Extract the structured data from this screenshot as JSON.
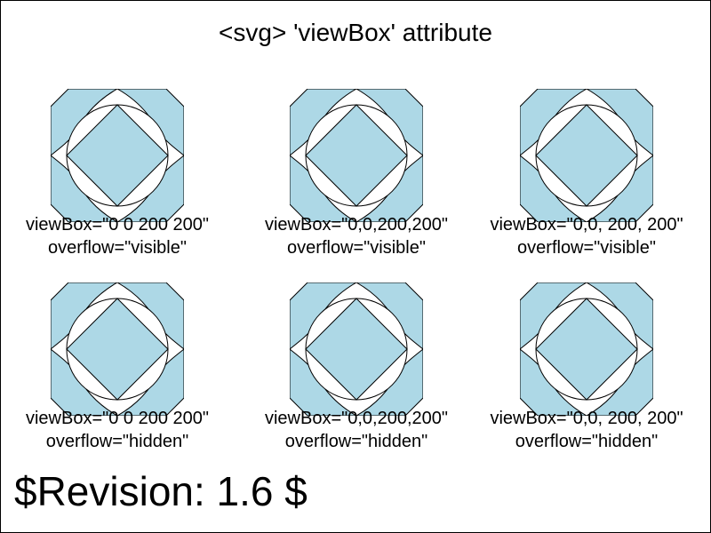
{
  "title": "<svg> 'viewBox' attribute",
  "revision": "$Revision: 1.6 $",
  "colors": {
    "fill": "#add8e6",
    "stroke": "#000000",
    "background": "#ffffff"
  },
  "cells": [
    {
      "viewbox_label": "viewBox=\"0 0 200 200\"",
      "overflow_label": "overflow=\"visible\""
    },
    {
      "viewbox_label": "viewBox=\"0,0,200,200\"",
      "overflow_label": "overflow=\"visible\""
    },
    {
      "viewbox_label": "viewBox=\"0,0, 200, 200\"",
      "overflow_label": "overflow=\"visible\""
    },
    {
      "viewbox_label": "viewBox=\"0 0 200 200\"",
      "overflow_label": "overflow=\"hidden\""
    },
    {
      "viewbox_label": "viewBox=\"0,0,200,200\"",
      "overflow_label": "overflow=\"hidden\""
    },
    {
      "viewbox_label": "viewBox=\"0,0, 200, 200\"",
      "overflow_label": "overflow=\"hidden\""
    }
  ]
}
